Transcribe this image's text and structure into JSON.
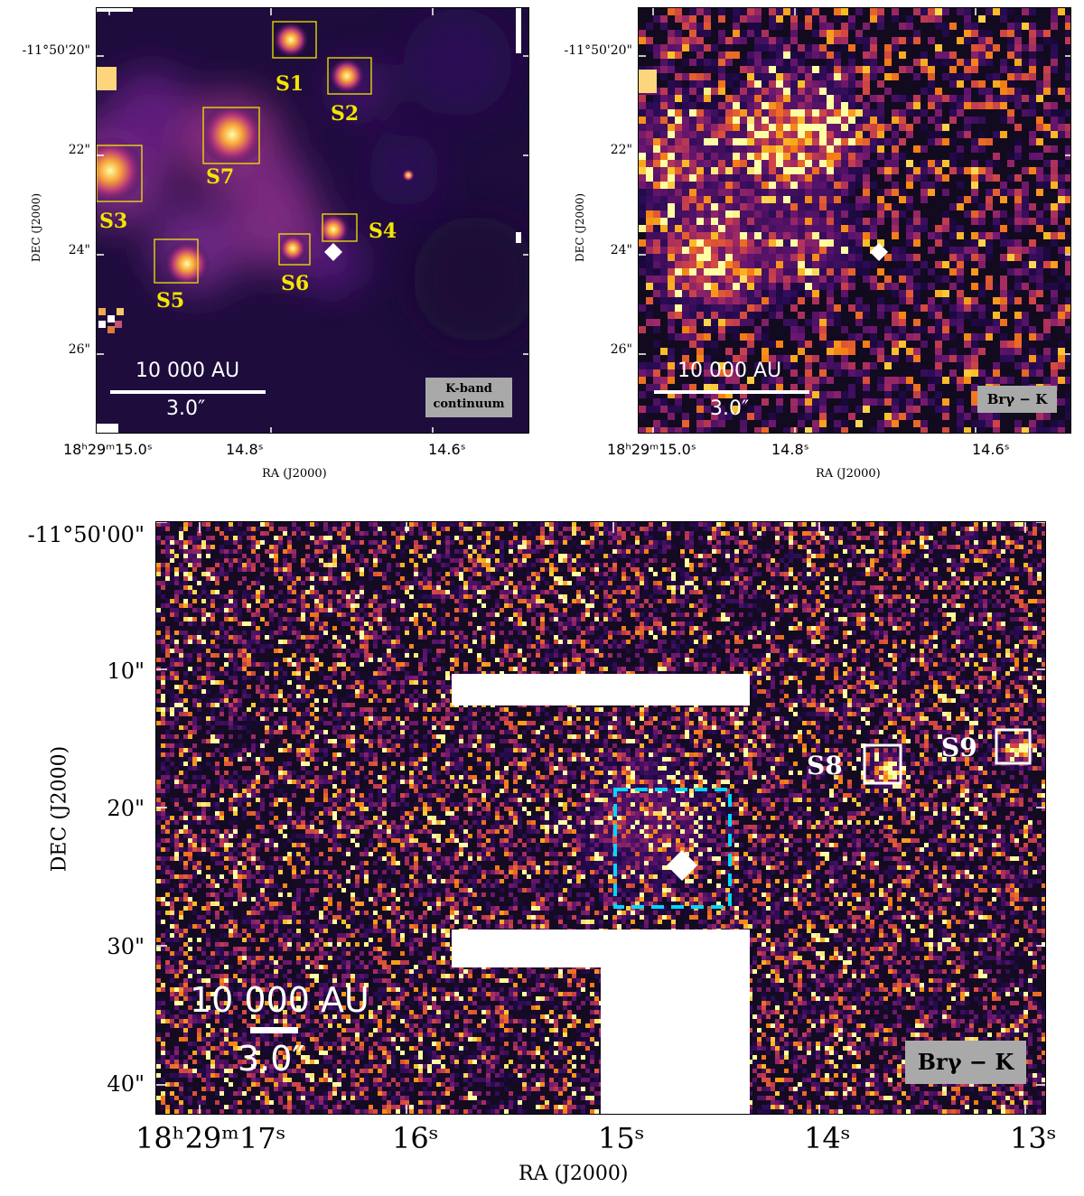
{
  "panels": {
    "top_left": {
      "ra_ticks": [
        "18ʰ29ᵐ15.0ˢ",
        "14.8ˢ",
        "14.6ˢ"
      ],
      "dec_ticks": [
        "-11°50'20\"",
        "22\"",
        "24\"",
        "26\""
      ],
      "xlabel": "RA (J2000)",
      "ylabel": "DEC (J2000)",
      "scale_au": "10 000 AU",
      "scale_arcsec": "3.0″",
      "band_line1": "K-band",
      "band_line2": "continuum",
      "sources": [
        "S1",
        "S2",
        "S3",
        "S4",
        "S5",
        "S6",
        "S7"
      ]
    },
    "top_right": {
      "ra_ticks": [
        "18ʰ29ᵐ15.0ˢ",
        "14.8ˢ",
        "14.6ˢ"
      ],
      "dec_ticks": [
        "-11°50'20\"",
        "22\"",
        "24\"",
        "26\""
      ],
      "xlabel": "RA (J2000)",
      "ylabel": "DEC (J2000)",
      "scale_au": "10 000 AU",
      "scale_arcsec": "3.0″",
      "band_label": "Brγ − K"
    },
    "bottom": {
      "ra_ticks": [
        "18ʰ29ᵐ17ˢ",
        "16ˢ",
        "15ˢ",
        "14ˢ",
        "13ˢ"
      ],
      "dec_ticks": [
        "-11°50'00\"",
        "10\"",
        "20\"",
        "30\"",
        "40\""
      ],
      "xlabel": "RA (J2000)",
      "ylabel": "DEC (J2000)",
      "scale_au": "10 000 AU",
      "scale_arcsec": "3.0″",
      "band_label": "Brγ − K",
      "sources": [
        "S8",
        "S9"
      ]
    }
  },
  "colors": {
    "background_dark": "#120a1e",
    "source_box_top": "#f2e600",
    "source_box_bottom": "#ffffff",
    "zoom_box": "#00d8ff",
    "marker": "#ffffff"
  }
}
